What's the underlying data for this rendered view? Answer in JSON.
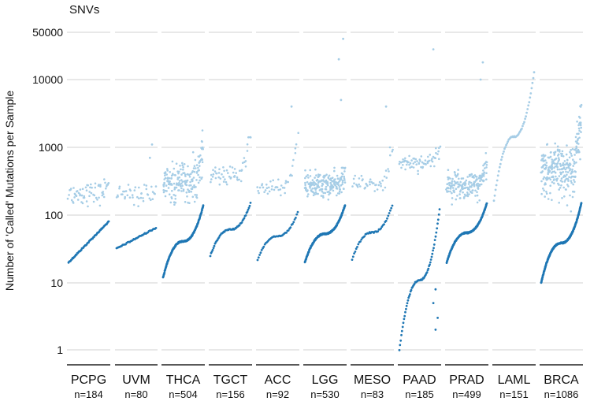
{
  "chart_data": {
    "type": "scatter",
    "title": "SNVs",
    "ylabel": "Number of 'Called' Mutations per Sample",
    "yscale": "log",
    "ylim": [
      0.8,
      60000
    ],
    "yticks": [
      1,
      10,
      100,
      1000,
      10000,
      50000
    ],
    "yticklabels": [
      "1",
      "10",
      "100",
      "1000",
      "10000",
      "50000"
    ],
    "grid": true,
    "colors": {
      "called": "#1f77b4",
      "uncalled": "#a6cde6",
      "grid": "#d9d9d9",
      "axis": "#222222"
    },
    "panels": [
      {
        "name": "PCPG",
        "n_label": "n=184",
        "called_range": [
          20,
          80
        ],
        "called_curve": "smooth",
        "uncalled_center": 210,
        "uncalled_spread": 0.08,
        "uncalled_max": 400,
        "outliers": []
      },
      {
        "name": "UVM",
        "n_label": "n=80",
        "called_range": [
          32,
          65
        ],
        "called_curve": "smooth",
        "uncalled_center": 200,
        "uncalled_spread": 0.08,
        "uncalled_max": 280,
        "outliers": [
          700,
          1100
        ]
      },
      {
        "name": "THCA",
        "n_label": "n=504",
        "called_range": [
          12,
          140
        ],
        "called_curve": "s",
        "uncalled_center": 300,
        "uncalled_spread": 0.14,
        "uncalled_max": 3000,
        "outliers": []
      },
      {
        "name": "TGCT",
        "n_label": "n=156",
        "called_range": [
          25,
          150
        ],
        "called_curve": "s",
        "uncalled_center": 380,
        "uncalled_spread": 0.07,
        "uncalled_max": 8000,
        "outliers": []
      },
      {
        "name": "ACC",
        "n_label": "n=92",
        "called_range": [
          22,
          110
        ],
        "called_curve": "s",
        "uncalled_center": 260,
        "uncalled_spread": 0.08,
        "uncalled_max": 8000,
        "outliers": [
          4000
        ]
      },
      {
        "name": "LGG",
        "n_label": "n=530",
        "called_range": [
          20,
          140
        ],
        "called_curve": "s",
        "uncalled_center": 280,
        "uncalled_spread": 0.09,
        "uncalled_max": 500,
        "outliers": [
          20000,
          5000,
          40000
        ]
      },
      {
        "name": "MESO",
        "n_label": "n=83",
        "called_range": [
          22,
          140
        ],
        "called_curve": "s",
        "uncalled_center": 280,
        "uncalled_spread": 0.07,
        "uncalled_max": 4000,
        "outliers": [
          4000
        ]
      },
      {
        "name": "PAAD",
        "n_label": "n=185",
        "called_range": [
          1,
          120
        ],
        "called_curve": "s",
        "uncalled_center": 600,
        "uncalled_spread": 0.06,
        "uncalled_max": 1500,
        "outliers": [
          28000,
          2,
          3,
          5,
          8
        ]
      },
      {
        "name": "PRAD",
        "n_label": "n=499",
        "called_range": [
          20,
          150
        ],
        "called_curve": "s",
        "uncalled_center": 270,
        "uncalled_spread": 0.1,
        "uncalled_max": 1000,
        "outliers": [
          10000,
          18000
        ]
      },
      {
        "name": "LAML",
        "n_label": "n=151",
        "called_range": [
          160,
          13000
        ],
        "called_curve": "s",
        "uncalled_center": 0,
        "uncalled_spread": 0,
        "uncalled_max": 0,
        "outliers": []
      },
      {
        "name": "BRCA",
        "n_label": "n=1086",
        "called_range": [
          10,
          150
        ],
        "called_curve": "s",
        "uncalled_center": 450,
        "uncalled_spread": 0.18,
        "uncalled_max": 20000,
        "outliers": []
      }
    ]
  }
}
